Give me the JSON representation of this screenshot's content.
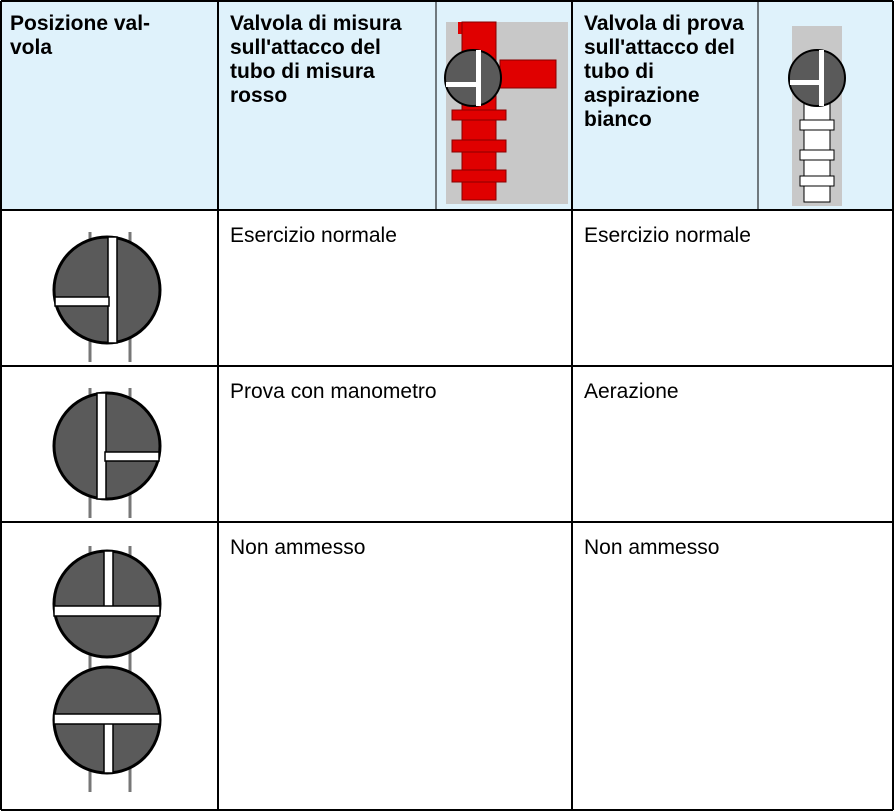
{
  "table": {
    "header": [
      "Posizione val-vola",
      "Valvola di misura sull'attacco del tubo di misura rosso",
      "Valvola di prova sull'attacco del tubo di aspirazione bianco"
    ],
    "rows": [
      [
        "Esercizio normale",
        "Esercizio normale"
      ],
      [
        "Prova con manometro",
        "Aerazione"
      ],
      [
        "Non ammesso",
        "Non ammesso"
      ]
    ]
  }
}
